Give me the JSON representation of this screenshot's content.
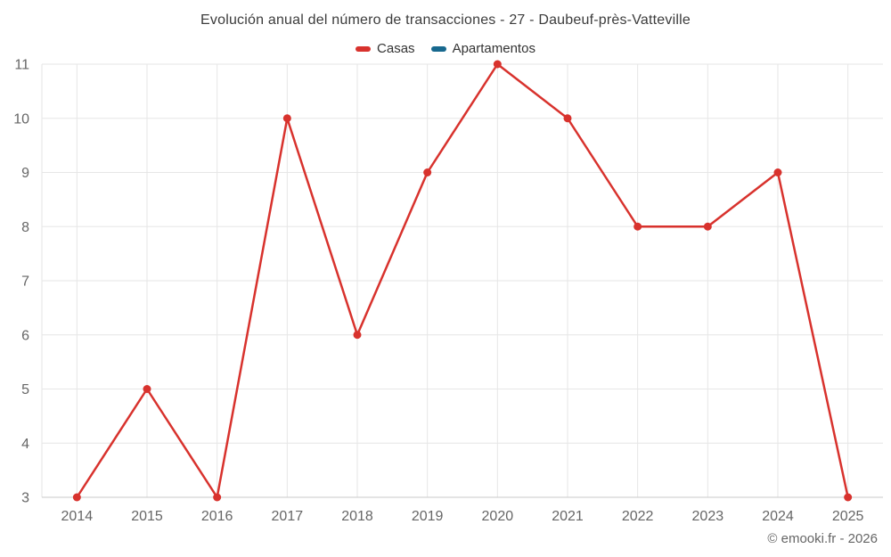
{
  "chart": {
    "title": "Evolución anual del número de transacciones - 27 - Daubeuf-près-Vatteville"
  },
  "legend": {
    "items": [
      {
        "label": "Casas",
        "color": "#d8322d"
      },
      {
        "label": "Apartamentos",
        "color": "#17688e"
      }
    ]
  },
  "chart_data": {
    "type": "line",
    "title": "Evolución anual del número de transacciones - 27 - Daubeuf-près-Vatteville",
    "categories": [
      "2014",
      "2015",
      "2016",
      "2017",
      "2018",
      "2019",
      "2020",
      "2021",
      "2022",
      "2023",
      "2024",
      "2025"
    ],
    "series": [
      {
        "name": "Casas",
        "color": "#d8322d",
        "values": [
          3,
          5,
          3,
          10,
          6,
          9,
          11,
          10,
          8,
          8,
          9,
          3
        ]
      },
      {
        "name": "Apartamentos",
        "color": "#17688e",
        "values": []
      }
    ],
    "xlabel": "",
    "ylabel": "",
    "ylim": [
      3,
      11
    ],
    "y_ticks": [
      3,
      4,
      5,
      6,
      7,
      8,
      9,
      10,
      11
    ],
    "grid": true,
    "legend_position": "top"
  },
  "colors": {
    "grid": "#e6e6e6",
    "axis": "#c9c9c9",
    "tick_label": "#666666"
  },
  "footer": {
    "credit": "© emooki.fr - 2026"
  }
}
